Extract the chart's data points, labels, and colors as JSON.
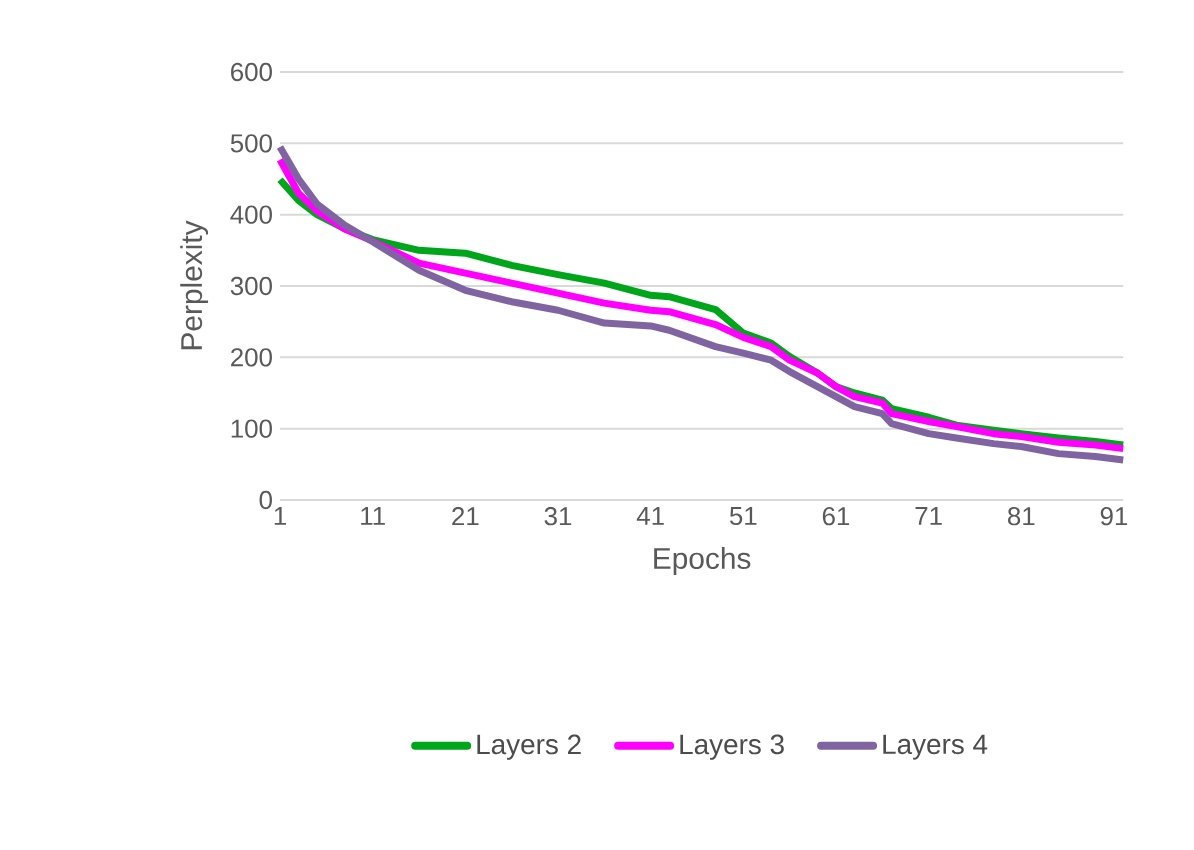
{
  "chart_data": {
    "type": "line",
    "xlabel": "Epochs",
    "ylabel": "Perplexity",
    "x": [
      1,
      3,
      5,
      8,
      11,
      16,
      21,
      26,
      31,
      36,
      41,
      43,
      48,
      51,
      54,
      56,
      59,
      61,
      63,
      66,
      67,
      71,
      74,
      78,
      81,
      85,
      89,
      92
    ],
    "series": [
      {
        "name": "Layers 2",
        "color": "#00a619",
        "values": [
          449,
          420,
          400,
          380,
          365,
          350,
          346,
          329,
          316,
          304,
          287,
          285,
          267,
          234,
          220,
          201,
          178,
          159,
          150,
          140,
          128,
          116,
          105,
          98,
          93,
          87,
          82,
          77
        ]
      },
      {
        "name": "Layers 3",
        "color": "#ff00ff",
        "values": [
          477,
          430,
          405,
          380,
          363,
          332,
          318,
          304,
          290,
          276,
          266,
          264,
          246,
          228,
          215,
          196,
          178,
          159,
          145,
          136,
          121,
          110,
          103,
          93,
          89,
          81,
          77,
          72
        ]
      },
      {
        "name": "Layers 4",
        "color": "#8064a2",
        "values": [
          495,
          450,
          415,
          385,
          362,
          322,
          294,
          278,
          266,
          248,
          244,
          238,
          215,
          206,
          196,
          180,
          159,
          145,
          131,
          121,
          107,
          93,
          87,
          79,
          75,
          65,
          61,
          56
        ]
      }
    ],
    "xlim": [
      1,
      92
    ],
    "xticks": [
      1,
      11,
      21,
      31,
      41,
      51,
      61,
      71,
      81,
      91
    ],
    "ylim": [
      0,
      600
    ],
    "yticks": [
      0,
      100,
      200,
      300,
      400,
      500,
      600
    ],
    "grid": "y",
    "legend": "bottom",
    "marker": "none",
    "line_style": "solid"
  }
}
